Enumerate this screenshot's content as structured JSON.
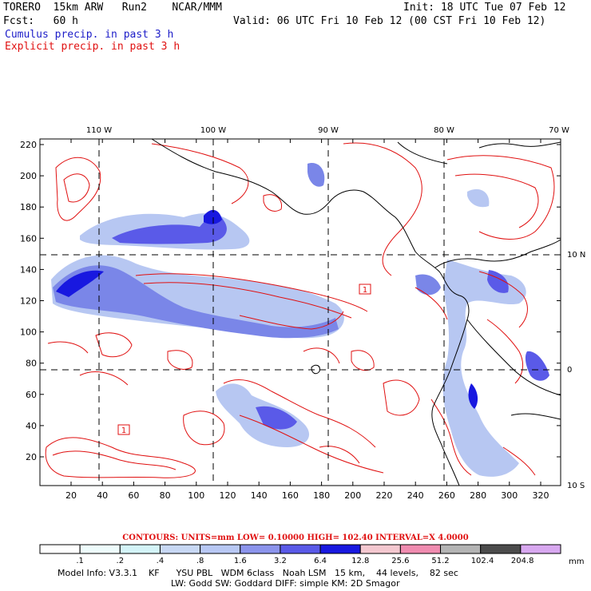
{
  "header": {
    "model_left": "TORERO  15km ARW   Run2    NCAR/MMM",
    "init": "Init: 18 UTC Tue 07 Feb 12",
    "fcst": "Fcst:   60 h",
    "valid": "Valid: 06 UTC Fri 10 Feb 12 (00 CST Fri 10 Feb 12)",
    "cumulus": "Cumulus precip. in past 3 h",
    "explicit": "Explicit precip. in past 3 h"
  },
  "map": {
    "top_labels": [
      "110 W",
      "100 W",
      "90 W",
      "80 W",
      "70 W"
    ],
    "right_labels": [
      "10 N",
      "0",
      "10 S"
    ],
    "y_ticks": [
      "220",
      "200",
      "180",
      "160",
      "140",
      "120",
      "100",
      "80",
      "60",
      "40",
      "20"
    ],
    "x_ticks": [
      "20",
      "40",
      "60",
      "80",
      "100",
      "120",
      "140",
      "160",
      "180",
      "200",
      "220",
      "240",
      "260",
      "280",
      "300",
      "320"
    ],
    "low_markers": [
      "1",
      "1"
    ],
    "colors": {
      "contour": "#e01010",
      "coast": "#000000",
      "light_blue": "#b7c7f2",
      "mid_blue": "#7a86e8",
      "deep_blue": "#1818e0"
    }
  },
  "contours_label": "CONTOURS:  UNITS=mm  LOW= 0.10000       HIGH=  102.40       INTERVAL=X  4.0000",
  "colorbar": {
    "labels": [
      ".1",
      ".2",
      ".4",
      ".8",
      "1.6",
      "3.2",
      "6.4",
      "12.8",
      "25.6",
      "51.2",
      "102.4",
      "204.8"
    ],
    "unit": "mm",
    "colors": [
      "#ffffff",
      "#eefcfc",
      "#d4f4f8",
      "#c8d8f4",
      "#b8c8f4",
      "#8c94ec",
      "#5a5ae8",
      "#1818e0",
      "#f4c8d0",
      "#f08cb0",
      "#b4b4b4",
      "#4c4c4c",
      "#d8a8f0"
    ]
  },
  "model_info": {
    "line1": "Model Info: V3.3.1    KF      YSU PBL   WDM 6class   Noah LSM   15 km,    44 levels,    82 sec",
    "line2": "LW: Godd SW: Goddard DIFF: simple KM: 2D Smagor"
  }
}
